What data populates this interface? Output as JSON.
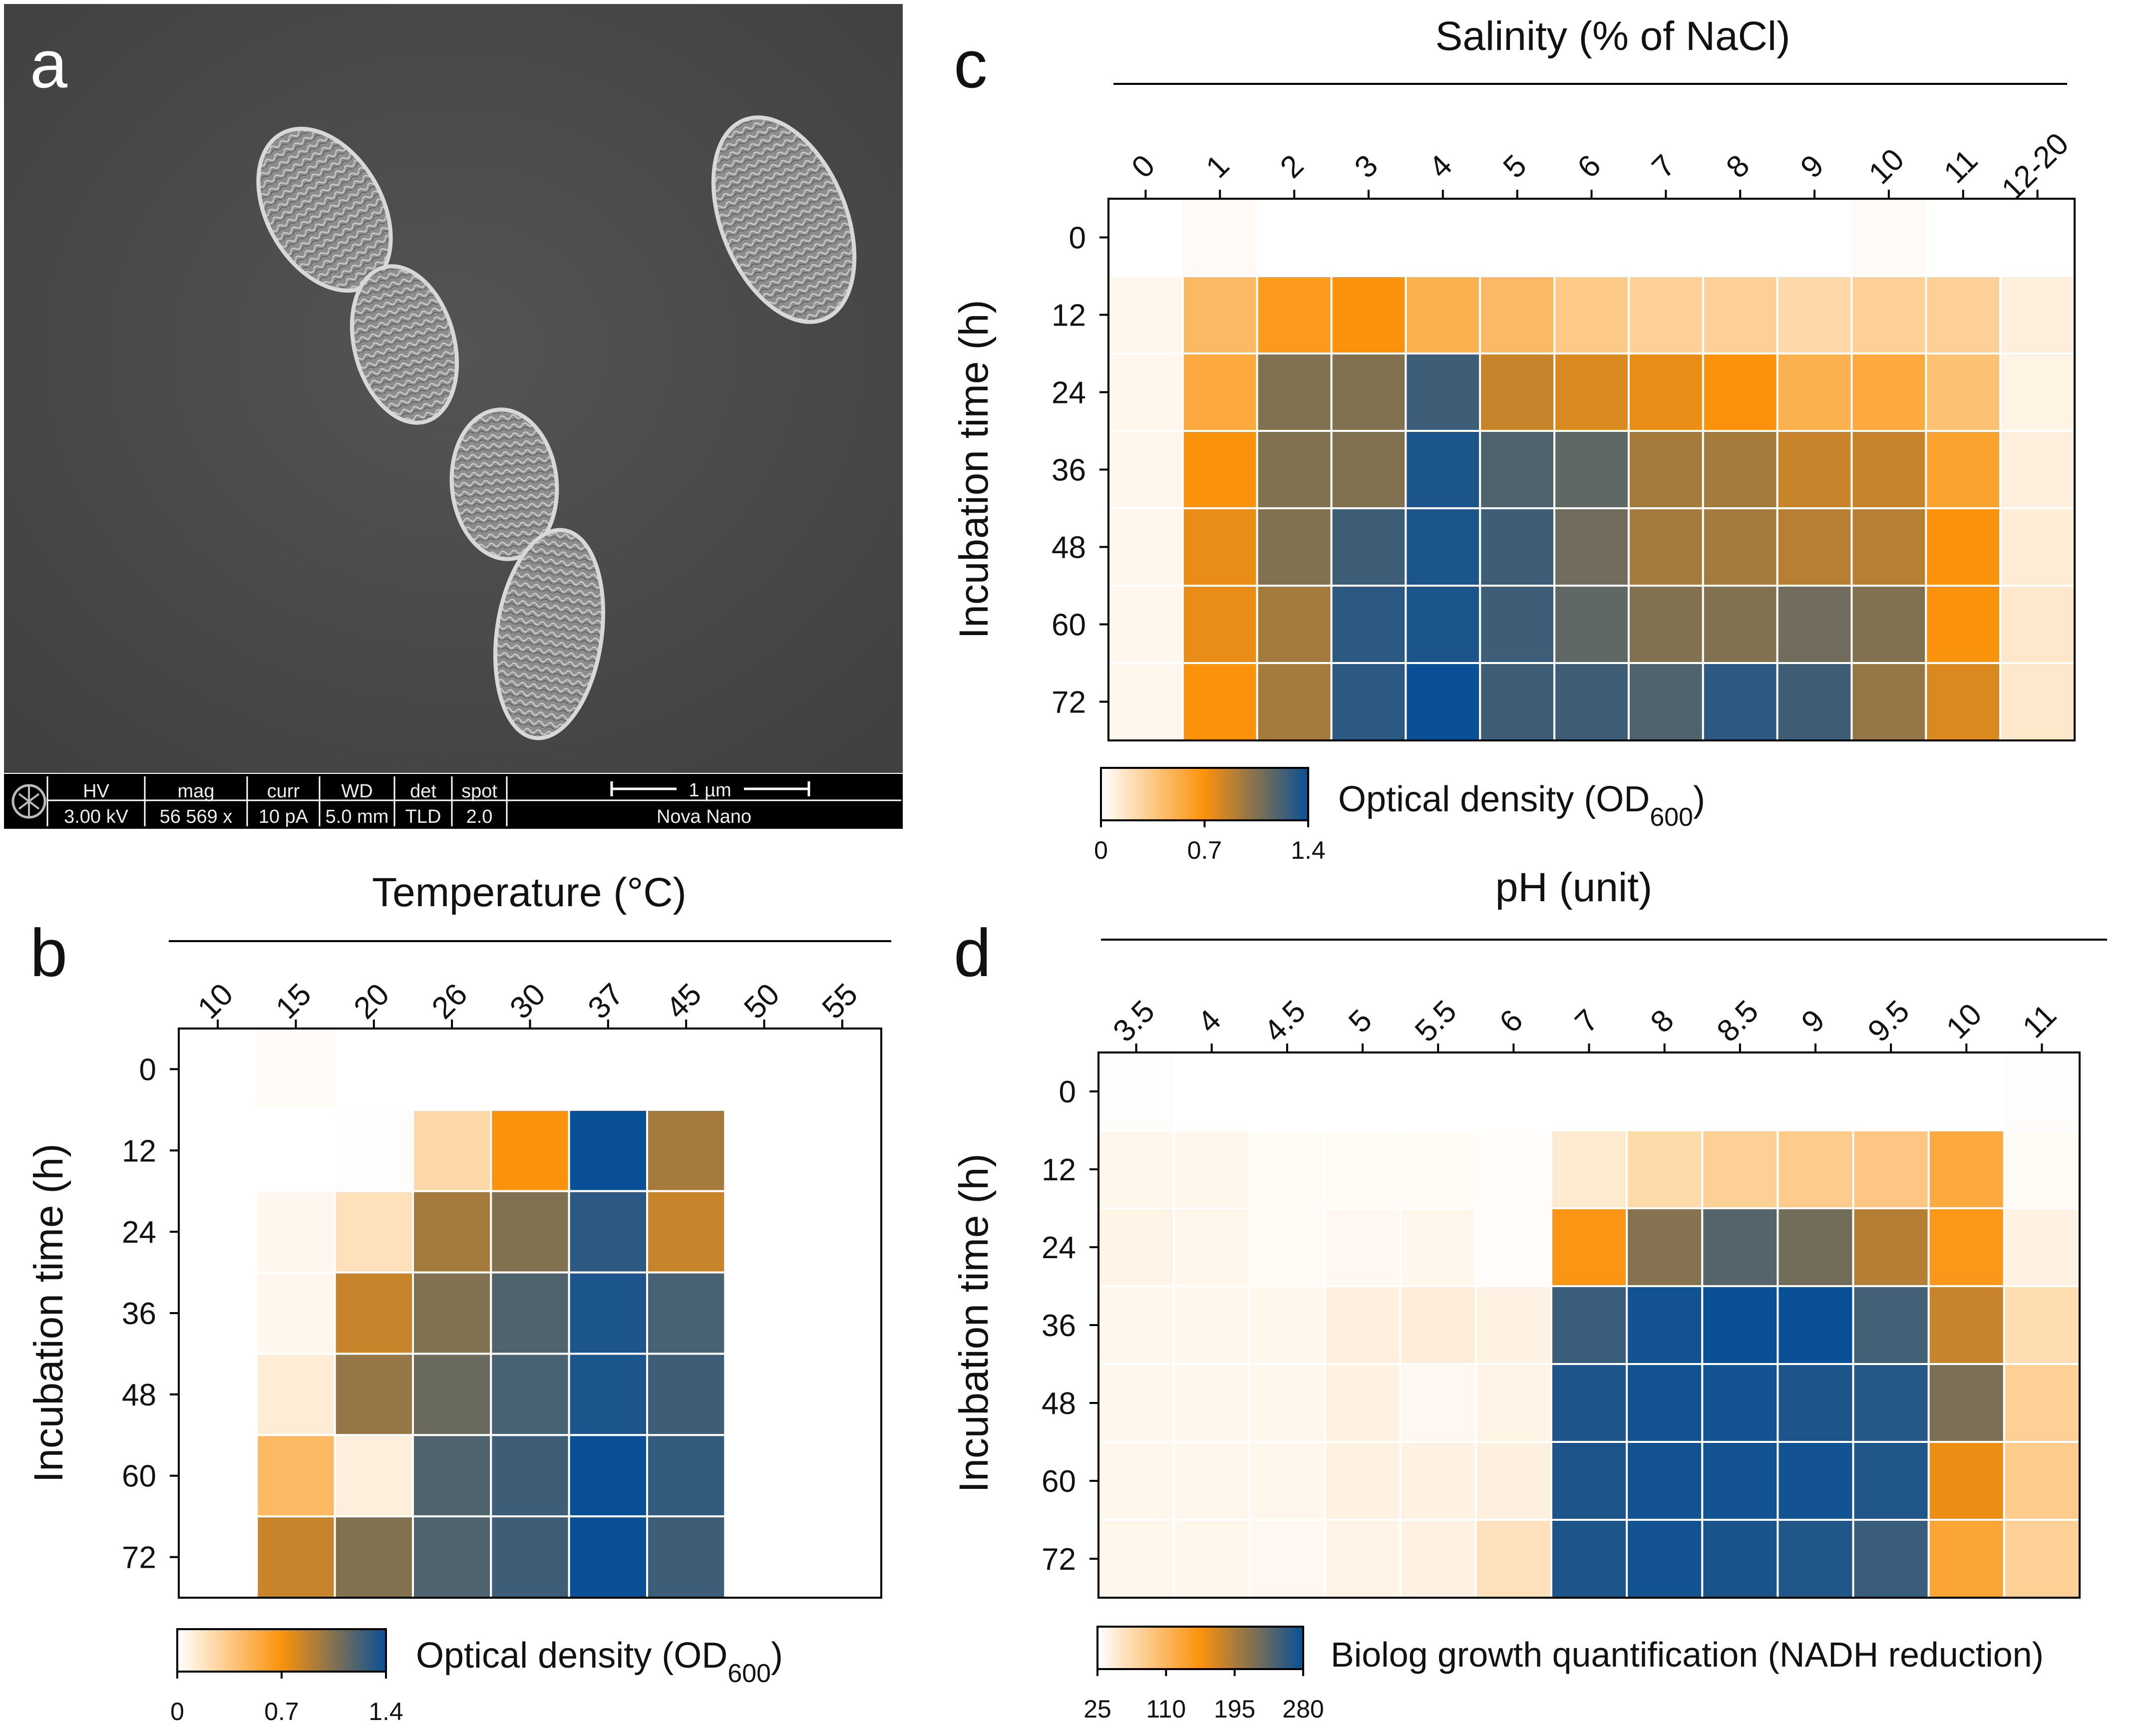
{
  "panel_labels": {
    "a": "a",
    "b": "b",
    "c": "c",
    "d": "d"
  },
  "colors": {
    "scale": [
      "#ffffff",
      "#fb920c",
      "#0a5096"
    ],
    "grid": "#ffffff",
    "axis": "#000000",
    "sem_background": "#4a4a4a",
    "sem_infobar": "#000000"
  },
  "sem": {
    "headers": [
      "HV",
      "mag",
      "curr",
      "WD",
      "det",
      "spot"
    ],
    "values": [
      "3.00 kV",
      "56 569 x",
      "10 pA",
      "5.0 mm",
      "TLD",
      "2.0"
    ],
    "scale_bar_label": "1 µm",
    "instrument": "Nova Nano",
    "logo_icon": "fei-logo-icon"
  },
  "chart_data": [
    {
      "id": "b",
      "type": "heatmap",
      "title": "Temperature (°C)",
      "xlabel": "Temperature (°C)",
      "ylabel": "Incubation time (h)",
      "categories": [
        "10",
        "15",
        "20",
        "26",
        "30",
        "37",
        "45",
        "50",
        "55"
      ],
      "rows": [
        "0",
        "12",
        "24",
        "36",
        "48",
        "60",
        "72"
      ],
      "values": [
        [
          0.0,
          0.02,
          0.0,
          0.0,
          0.0,
          0.0,
          0.0,
          0.0,
          0.0
        ],
        [
          0.0,
          0.0,
          0.01,
          0.25,
          0.7,
          1.4,
          0.95,
          0.0,
          0.0
        ],
        [
          0.0,
          0.05,
          0.2,
          0.95,
          1.05,
          1.3,
          0.85,
          0.0,
          0.0
        ],
        [
          0.0,
          0.05,
          0.85,
          1.05,
          1.2,
          1.35,
          1.22,
          0.0,
          0.0
        ],
        [
          0.0,
          0.12,
          1.0,
          1.12,
          1.22,
          1.35,
          1.25,
          0.0,
          0.0
        ],
        [
          0.0,
          0.45,
          0.1,
          1.2,
          1.25,
          1.4,
          1.28,
          0.0,
          0.0
        ],
        [
          0.0,
          0.85,
          1.05,
          1.2,
          1.25,
          1.4,
          1.25,
          0.0,
          0.0
        ]
      ],
      "colorbar": {
        "label": "Optical density (OD",
        "label_sub": "600",
        "label_end": ")",
        "ticks": [
          "0",
          "0.7",
          "1.4"
        ],
        "range": [
          0,
          1.4
        ]
      }
    },
    {
      "id": "c",
      "type": "heatmap",
      "title": "Salinity (% of NaCl)",
      "xlabel": "Salinity (% of NaCl)",
      "ylabel": "Incubation time (h)",
      "categories": [
        "0",
        "1",
        "2",
        "3",
        "4",
        "5",
        "6",
        "7",
        "8",
        "9",
        "10",
        "11",
        "12-20"
      ],
      "rows": [
        "0",
        "12",
        "24",
        "36",
        "48",
        "60",
        "72"
      ],
      "values": [
        [
          0.0,
          0.03,
          0.0,
          0.0,
          0.0,
          0.0,
          0.0,
          0.0,
          0.0,
          0.0,
          0.03,
          0.0,
          0.0
        ],
        [
          0.05,
          0.45,
          0.65,
          0.7,
          0.5,
          0.45,
          0.35,
          0.3,
          0.3,
          0.25,
          0.3,
          0.3,
          0.1
        ],
        [
          0.05,
          0.55,
          1.05,
          1.05,
          1.25,
          0.85,
          0.8,
          0.75,
          0.7,
          0.5,
          0.55,
          0.4,
          0.08
        ],
        [
          0.05,
          0.7,
          1.05,
          1.05,
          1.35,
          1.2,
          1.15,
          0.95,
          0.95,
          0.85,
          0.85,
          0.6,
          0.1
        ],
        [
          0.05,
          0.75,
          1.05,
          1.25,
          1.35,
          1.25,
          1.1,
          0.95,
          0.95,
          0.9,
          0.9,
          0.7,
          0.12
        ],
        [
          0.05,
          0.75,
          0.95,
          1.3,
          1.35,
          1.25,
          1.15,
          1.05,
          1.05,
          1.1,
          1.05,
          0.7,
          0.15
        ],
        [
          0.05,
          0.7,
          0.95,
          1.3,
          1.4,
          1.25,
          1.25,
          1.2,
          1.3,
          1.25,
          1.0,
          0.8,
          0.15
        ]
      ],
      "colorbar": {
        "label": "Optical density (OD",
        "label_sub": "600",
        "label_end": ")",
        "ticks": [
          "0",
          "0.7",
          "1.4"
        ],
        "range": [
          0,
          1.4
        ]
      }
    },
    {
      "id": "d",
      "type": "heatmap",
      "title": "pH (unit)",
      "xlabel": "pH (unit)",
      "ylabel": "Incubation time (h)",
      "categories": [
        "3.5",
        "4",
        "4.5",
        "5",
        "5.5",
        "6",
        "7",
        "8",
        "8.5",
        "9",
        "9.5",
        "10",
        "11"
      ],
      "rows": [
        "0",
        "12",
        "24",
        "36",
        "48",
        "60",
        "72"
      ],
      "values": [
        [
          27,
          25,
          25,
          25,
          25,
          25,
          25,
          25,
          25,
          25,
          25,
          25,
          27
        ],
        [
          35,
          35,
          30,
          30,
          30,
          28,
          50,
          70,
          80,
          85,
          90,
          125,
          30
        ],
        [
          38,
          35,
          30,
          33,
          35,
          28,
          148,
          215,
          240,
          225,
          190,
          145,
          40
        ],
        [
          35,
          35,
          35,
          42,
          45,
          40,
          255,
          275,
          280,
          280,
          250,
          180,
          65
        ],
        [
          35,
          35,
          35,
          40,
          33,
          38,
          270,
          275,
          275,
          270,
          265,
          220,
          80
        ],
        [
          35,
          35,
          35,
          40,
          40,
          42,
          270,
          275,
          275,
          275,
          268,
          160,
          85
        ],
        [
          35,
          35,
          33,
          38,
          40,
          60,
          270,
          275,
          272,
          268,
          255,
          130,
          80
        ]
      ],
      "colorbar": {
        "label": "Biolog growth quantification (NADH reduction)",
        "ticks": [
          "25",
          "110",
          "195",
          "280"
        ],
        "range": [
          25,
          280
        ]
      }
    }
  ]
}
